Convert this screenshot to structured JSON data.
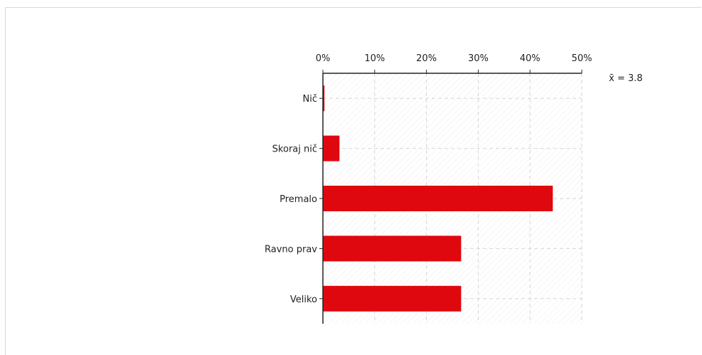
{
  "chart_data": {
    "type": "bar",
    "orientation": "horizontal",
    "categories": [
      "Nič",
      "Skoraj nič",
      "Premalo",
      "Ravno prav",
      "Veliko"
    ],
    "values": [
      0.3,
      3.2,
      44.4,
      26.7,
      26.7
    ],
    "xlim": [
      0,
      50
    ],
    "xticks": [
      "0%",
      "10%",
      "20%",
      "30%",
      "40%",
      "50%"
    ],
    "axis_position": "top",
    "grid": true,
    "bar_color": "#e0080f",
    "mean_label": "x̄ = 3.8"
  }
}
